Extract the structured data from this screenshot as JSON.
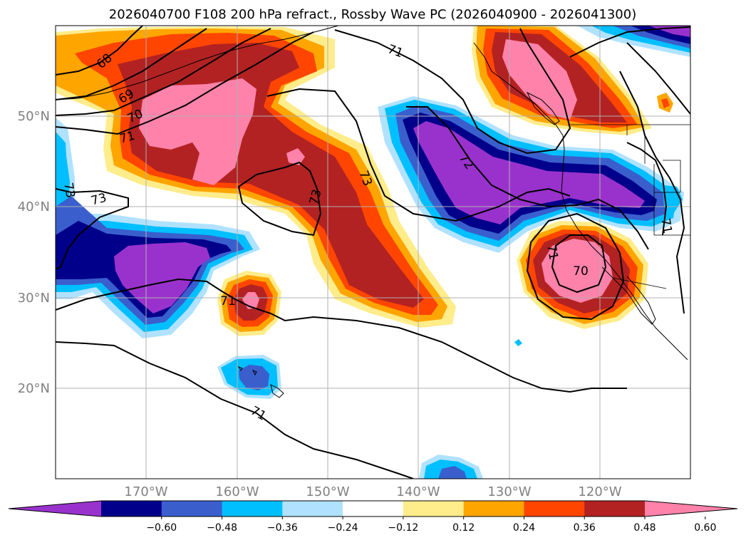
{
  "title": "2026040700 F108 200 hPa refract., Rossby Wave PC (2026040900 - 2026041300)",
  "lon_ticks": [
    "170°W",
    "160°W",
    "150°W",
    "140°W",
    "130°W",
    "120°W"
  ],
  "lat_ticks": [
    "50°N",
    "40°N",
    "30°N",
    "20°N"
  ],
  "colorbar": {
    "tick_labels": [
      "−0.60",
      "−0.48",
      "−0.36",
      "−0.24",
      "−0.12",
      "0.12",
      "0.24",
      "0.36",
      "0.48",
      "0.60"
    ],
    "levels": [
      -0.6,
      -0.48,
      -0.36,
      -0.24,
      -0.12,
      0.12,
      0.24,
      0.36,
      0.48,
      0.6
    ],
    "colors": [
      "#9932cc",
      "#00008b",
      "#3a5fcd",
      "#00bfff",
      "#b0e2ff",
      "#ffffff",
      "#ffec8b",
      "#ffa500",
      "#ff4500",
      "#b22222",
      "#ff82ab"
    ],
    "extend": "both"
  },
  "contour_labels": [
    "68",
    "69",
    "70",
    "71",
    "71",
    "73",
    "73",
    "73",
    "72",
    "71",
    "70",
    "71",
    "71",
    "73",
    "71"
  ],
  "map": {
    "projection": "cylindrical",
    "lon_range": [
      -180,
      -110
    ],
    "lat_range": [
      10,
      60
    ],
    "gridlines": true,
    "field": "200 hPa refractive index, Rossby Wave PC"
  }
}
